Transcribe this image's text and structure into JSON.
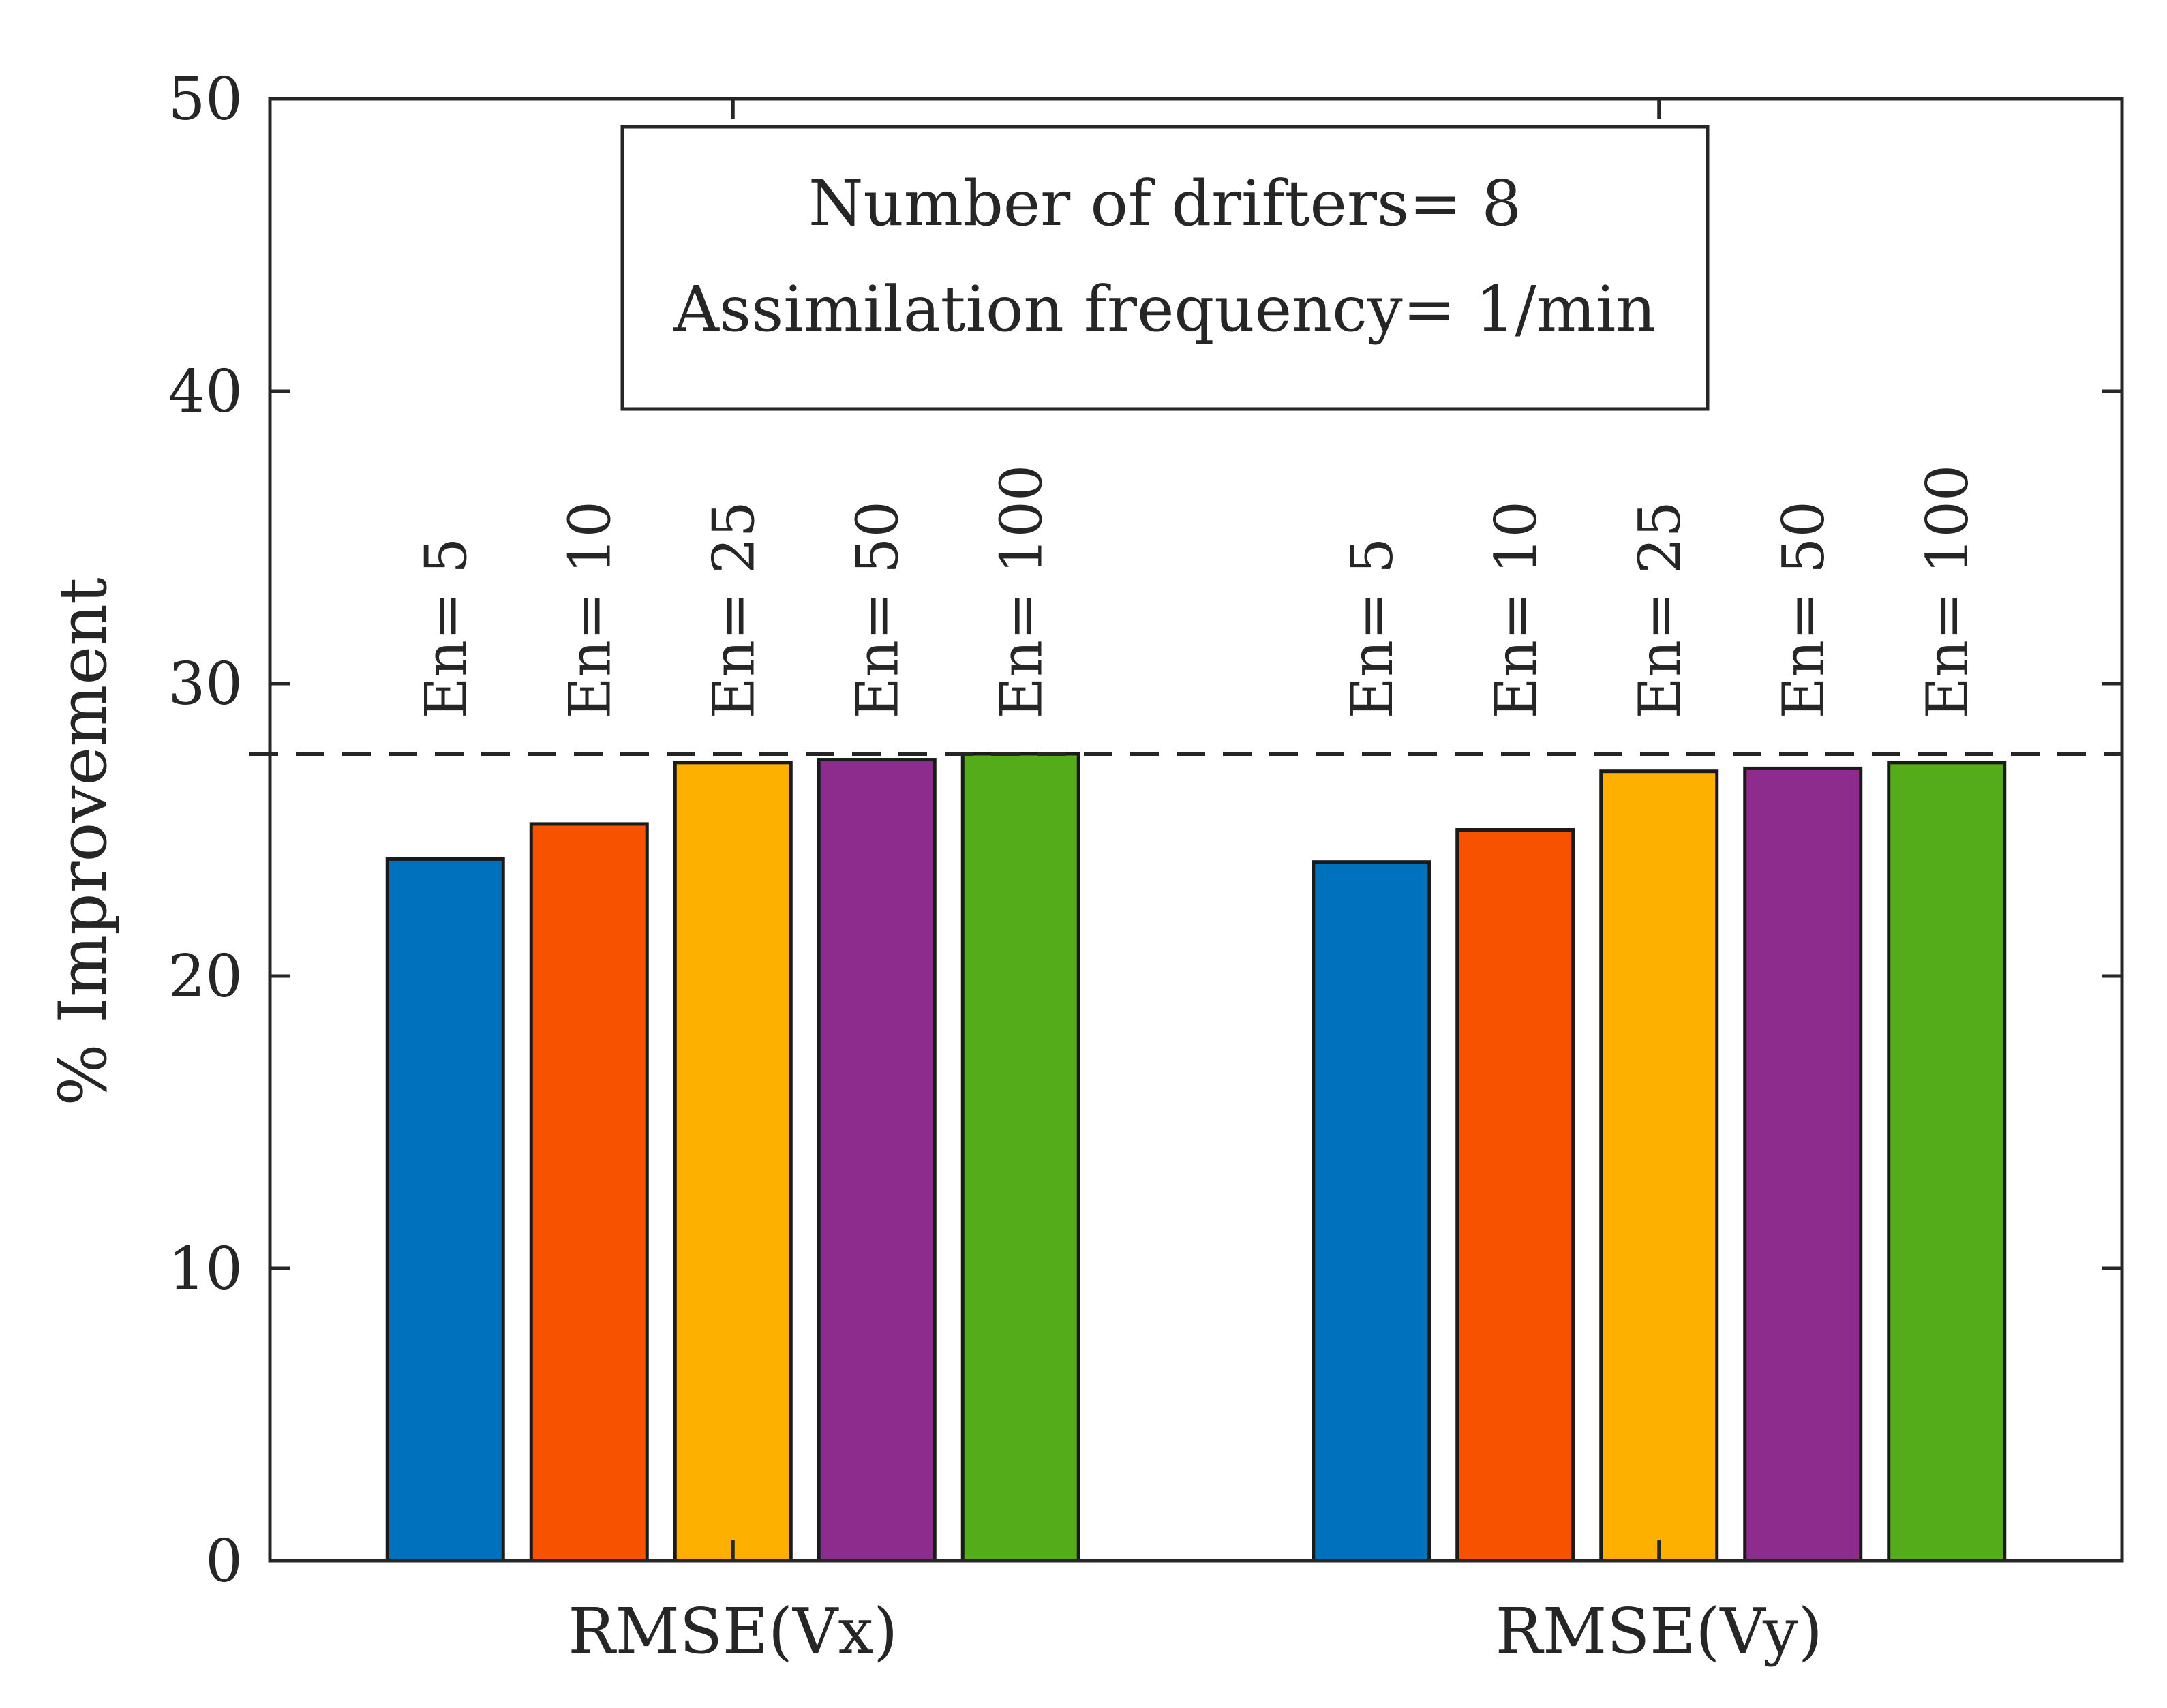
{
  "chart_data": {
    "type": "bar",
    "ylabel": "% Improvement",
    "xlabel": "",
    "ylim": [
      0,
      50
    ],
    "yticks": [
      0,
      10,
      20,
      30,
      40,
      50
    ],
    "ytick_labels": [
      "0",
      "10",
      "20",
      "30",
      "40",
      "50"
    ],
    "grid": false,
    "categories": [
      "RMSE(Vx)",
      "RMSE(Vy)"
    ],
    "series": [
      {
        "name": "En= 5",
        "color": "#0072BD",
        "values": [
          24.0,
          23.9
        ]
      },
      {
        "name": "En= 10",
        "color": "#F65200",
        "values": [
          25.2,
          25.0
        ]
      },
      {
        "name": "En= 25",
        "color": "#FDB000",
        "values": [
          27.3,
          27.0
        ]
      },
      {
        "name": "En= 50",
        "color": "#8E2C8E",
        "values": [
          27.4,
          27.1
        ]
      },
      {
        "name": "En= 100",
        "color": "#55AC1A",
        "values": [
          27.6,
          27.3
        ]
      }
    ],
    "reference_line": {
      "value": 27.6,
      "style": "dashed"
    },
    "annotation": {
      "lines": [
        "Number of drifters= 8",
        "Assimilation frequency= 1/min"
      ],
      "placement": "top-center"
    }
  }
}
